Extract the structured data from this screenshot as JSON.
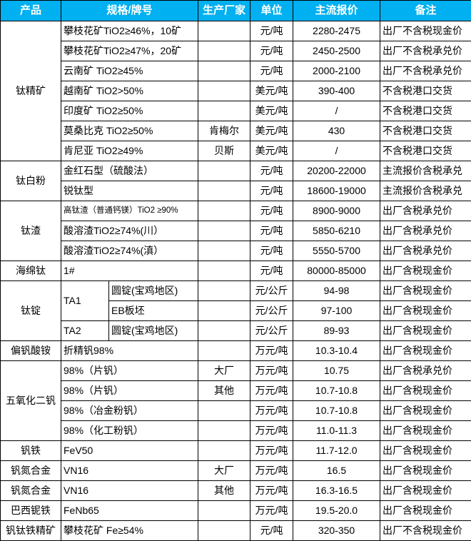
{
  "colors": {
    "header_bg": "#00b0f0",
    "header_text": "#ffffff",
    "grid_border": "#000000",
    "cell_text": "#000000"
  },
  "table": {
    "header": {
      "product": "产品",
      "spec": "规格/牌号",
      "manufacturer": "生产厂家",
      "unit": "单位",
      "price": "主流报价",
      "remark": "备注"
    },
    "rows": [
      {
        "cells": [
          {
            "t": "钛精矿",
            "rs": 7,
            "name": "product"
          },
          {
            "t": "攀枝花矿TiO2≥46%，10矿",
            "cs": 2,
            "name": "spec",
            "align": "left"
          },
          {
            "t": "",
            "name": "manufacturer"
          },
          {
            "t": "元/吨",
            "name": "unit"
          },
          {
            "t": "2280-2475",
            "name": "price"
          },
          {
            "t": "出厂不含税现金价",
            "name": "remark",
            "align": "left"
          }
        ]
      },
      {
        "cells": [
          {
            "t": "攀枝花矿TiO2≥47%，20矿",
            "cs": 2,
            "name": "spec",
            "align": "left"
          },
          {
            "t": "",
            "name": "manufacturer"
          },
          {
            "t": "元/吨",
            "name": "unit"
          },
          {
            "t": "2450-2500",
            "name": "price"
          },
          {
            "t": "出厂不含税承兑价",
            "name": "remark",
            "align": "left"
          }
        ]
      },
      {
        "cells": [
          {
            "t": "云南矿 TiO2≥45%",
            "cs": 2,
            "name": "spec",
            "align": "left"
          },
          {
            "t": "",
            "name": "manufacturer"
          },
          {
            "t": "元/吨",
            "name": "unit"
          },
          {
            "t": "2000-2100",
            "name": "price"
          },
          {
            "t": "出厂不含税承兑价",
            "name": "remark",
            "align": "left"
          }
        ]
      },
      {
        "cells": [
          {
            "t": "越南矿 TiO2>50%",
            "cs": 2,
            "name": "spec",
            "align": "left"
          },
          {
            "t": "",
            "name": "manufacturer"
          },
          {
            "t": "美元/吨",
            "name": "unit"
          },
          {
            "t": "390-400",
            "name": "price"
          },
          {
            "t": "不含税港口交货",
            "name": "remark",
            "align": "left"
          }
        ]
      },
      {
        "cells": [
          {
            "t": "印度矿 TiO2≥50%",
            "cs": 2,
            "name": "spec",
            "align": "left"
          },
          {
            "t": "",
            "name": "manufacturer"
          },
          {
            "t": "美元/吨",
            "name": "unit"
          },
          {
            "t": "/",
            "name": "price"
          },
          {
            "t": "不含税港口交货",
            "name": "remark",
            "align": "left"
          }
        ]
      },
      {
        "cells": [
          {
            "t": "莫桑比克 TiO2≥50%",
            "cs": 2,
            "name": "spec",
            "align": "left"
          },
          {
            "t": "肯梅尔",
            "name": "manufacturer"
          },
          {
            "t": "美元/吨",
            "name": "unit"
          },
          {
            "t": "430",
            "name": "price"
          },
          {
            "t": "不含税港口交货",
            "name": "remark",
            "align": "left"
          }
        ]
      },
      {
        "cells": [
          {
            "t": "肯尼亚 TiO2≥49%",
            "cs": 2,
            "name": "spec",
            "align": "left"
          },
          {
            "t": "贝斯",
            "name": "manufacturer"
          },
          {
            "t": "美元/吨",
            "name": "unit"
          },
          {
            "t": "/",
            "name": "price"
          },
          {
            "t": "不含税港口交货",
            "name": "remark",
            "align": "left"
          }
        ]
      },
      {
        "cells": [
          {
            "t": "钛白粉",
            "rs": 2,
            "name": "product"
          },
          {
            "t": "金红石型（硫酸法）",
            "cs": 2,
            "name": "spec",
            "align": "left"
          },
          {
            "t": "",
            "name": "manufacturer"
          },
          {
            "t": "元/吨",
            "name": "unit"
          },
          {
            "t": "20200-22000",
            "name": "price"
          },
          {
            "t": "主流报价含税承兑",
            "name": "remark",
            "align": "left"
          }
        ]
      },
      {
        "cells": [
          {
            "t": "锐钛型",
            "cs": 2,
            "name": "spec",
            "align": "left"
          },
          {
            "t": "",
            "name": "manufacturer"
          },
          {
            "t": "元/吨",
            "name": "unit"
          },
          {
            "t": "18600-19000",
            "name": "price"
          },
          {
            "t": "主流报价含税承兑",
            "name": "remark",
            "align": "left"
          }
        ]
      },
      {
        "cells": [
          {
            "t": "钛渣",
            "rs": 3,
            "name": "product"
          },
          {
            "t": "高钛渣（普通钙镁）TiO2 ≥90%",
            "cs": 2,
            "name": "spec",
            "align": "left",
            "small": true
          },
          {
            "t": "",
            "name": "manufacturer"
          },
          {
            "t": "元/吨",
            "name": "unit"
          },
          {
            "t": "8900-9000",
            "name": "price"
          },
          {
            "t": "出厂含税承兑价",
            "name": "remark",
            "align": "left"
          }
        ]
      },
      {
        "cells": [
          {
            "t": "酸溶渣TiO2≥74%(川）",
            "cs": 2,
            "name": "spec",
            "align": "left"
          },
          {
            "t": "",
            "name": "manufacturer"
          },
          {
            "t": "元/吨",
            "name": "unit"
          },
          {
            "t": "5850-6210",
            "name": "price"
          },
          {
            "t": "出厂含税承兑价",
            "name": "remark",
            "align": "left"
          }
        ]
      },
      {
        "cells": [
          {
            "t": "酸溶渣TiO2≥74%(滇）",
            "cs": 2,
            "name": "spec",
            "align": "left"
          },
          {
            "t": "",
            "name": "manufacturer"
          },
          {
            "t": "元/吨",
            "name": "unit"
          },
          {
            "t": "5550-5700",
            "name": "price"
          },
          {
            "t": "出厂含税承兑价",
            "name": "remark",
            "align": "left"
          }
        ]
      },
      {
        "cells": [
          {
            "t": "海绵钛",
            "name": "product"
          },
          {
            "t": "1#",
            "cs": 2,
            "name": "spec",
            "align": "left"
          },
          {
            "t": "",
            "name": "manufacturer"
          },
          {
            "t": "元/吨",
            "name": "unit"
          },
          {
            "t": "80000-85000",
            "name": "price"
          },
          {
            "t": "出厂含税现金价",
            "name": "remark",
            "align": "left"
          }
        ]
      },
      {
        "cells": [
          {
            "t": "钛锭",
            "rs": 3,
            "name": "product"
          },
          {
            "t": "TA1",
            "rs": 2,
            "name": "spec-grade",
            "align": "left"
          },
          {
            "t": "圆锭(宝鸡地区)",
            "name": "spec-form",
            "align": "left"
          },
          {
            "t": "",
            "name": "manufacturer"
          },
          {
            "t": "元/公斤",
            "name": "unit"
          },
          {
            "t": "94-98",
            "name": "price"
          },
          {
            "t": "出厂含税现金价",
            "name": "remark",
            "align": "left"
          }
        ]
      },
      {
        "cells": [
          {
            "t": "EB板坯",
            "name": "spec-form",
            "align": "left"
          },
          {
            "t": "",
            "name": "manufacturer"
          },
          {
            "t": "元/公斤",
            "name": "unit"
          },
          {
            "t": "97-100",
            "name": "price"
          },
          {
            "t": "出厂含税现金价",
            "name": "remark",
            "align": "left"
          }
        ]
      },
      {
        "cells": [
          {
            "t": "TA2",
            "name": "spec-grade",
            "align": "left"
          },
          {
            "t": "圆锭(宝鸡地区)",
            "name": "spec-form",
            "align": "left"
          },
          {
            "t": "",
            "name": "manufacturer"
          },
          {
            "t": "元/公斤",
            "name": "unit"
          },
          {
            "t": "89-93",
            "name": "price"
          },
          {
            "t": "出厂含税现金价",
            "name": "remark",
            "align": "left"
          }
        ]
      },
      {
        "cells": [
          {
            "t": "偏钒酸铵",
            "name": "product"
          },
          {
            "t": "折精钒98%",
            "cs": 2,
            "name": "spec",
            "align": "left"
          },
          {
            "t": "",
            "name": "manufacturer"
          },
          {
            "t": "万元/吨",
            "name": "unit"
          },
          {
            "t": "10.3-10.4",
            "name": "price"
          },
          {
            "t": "出厂含税现金价",
            "name": "remark",
            "align": "left"
          }
        ]
      },
      {
        "cells": [
          {
            "t": "五氧化二钒",
            "rs": 4,
            "name": "product"
          },
          {
            "t": "98%（片钒）",
            "cs": 2,
            "name": "spec",
            "align": "left"
          },
          {
            "t": "大厂",
            "name": "manufacturer"
          },
          {
            "t": "万元/吨",
            "name": "unit"
          },
          {
            "t": "10.75",
            "name": "price"
          },
          {
            "t": "出厂含税承兑价",
            "name": "remark",
            "align": "left"
          }
        ]
      },
      {
        "cells": [
          {
            "t": "98%（片钒）",
            "cs": 2,
            "name": "spec",
            "align": "left"
          },
          {
            "t": "其他",
            "name": "manufacturer"
          },
          {
            "t": "万元/吨",
            "name": "unit"
          },
          {
            "t": "10.7-10.8",
            "name": "price"
          },
          {
            "t": "出厂含税现金价",
            "name": "remark",
            "align": "left"
          }
        ]
      },
      {
        "cells": [
          {
            "t": "98%（冶金粉钒）",
            "cs": 2,
            "name": "spec",
            "align": "left"
          },
          {
            "t": "",
            "name": "manufacturer"
          },
          {
            "t": "万元/吨",
            "name": "unit"
          },
          {
            "t": "10.7-10.8",
            "name": "price"
          },
          {
            "t": "出厂含税现金价",
            "name": "remark",
            "align": "left"
          }
        ]
      },
      {
        "cells": [
          {
            "t": "98%（化工粉钒）",
            "cs": 2,
            "name": "spec",
            "align": "left"
          },
          {
            "t": "",
            "name": "manufacturer"
          },
          {
            "t": "万元/吨",
            "name": "unit"
          },
          {
            "t": "11.0-11.3",
            "name": "price"
          },
          {
            "t": "出厂含税现金价",
            "name": "remark",
            "align": "left"
          }
        ]
      },
      {
        "cells": [
          {
            "t": "钒铁",
            "name": "product"
          },
          {
            "t": "FeV50",
            "cs": 2,
            "name": "spec",
            "align": "left"
          },
          {
            "t": "",
            "name": "manufacturer"
          },
          {
            "t": "万元/吨",
            "name": "unit"
          },
          {
            "t": "11.7-12.0",
            "name": "price"
          },
          {
            "t": "出厂含税现金价",
            "name": "remark",
            "align": "left"
          }
        ]
      },
      {
        "cells": [
          {
            "t": "钒氮合金",
            "name": "product"
          },
          {
            "t": "VN16",
            "cs": 2,
            "name": "spec",
            "align": "left"
          },
          {
            "t": "大厂",
            "name": "manufacturer"
          },
          {
            "t": "万元/吨",
            "name": "unit"
          },
          {
            "t": "16.5",
            "name": "price"
          },
          {
            "t": "出厂含税现金价",
            "name": "remark",
            "align": "left"
          }
        ]
      },
      {
        "cells": [
          {
            "t": "钒氮合金",
            "name": "product"
          },
          {
            "t": "VN16",
            "cs": 2,
            "name": "spec",
            "align": "left"
          },
          {
            "t": "其他",
            "name": "manufacturer"
          },
          {
            "t": "万元/吨",
            "name": "unit"
          },
          {
            "t": "16.3-16.5",
            "name": "price"
          },
          {
            "t": "出厂含税现金价",
            "name": "remark",
            "align": "left"
          }
        ]
      },
      {
        "cells": [
          {
            "t": "巴西铌铁",
            "name": "product"
          },
          {
            "t": "FeNb65",
            "cs": 2,
            "name": "spec",
            "align": "left"
          },
          {
            "t": "",
            "name": "manufacturer"
          },
          {
            "t": "万元/吨",
            "name": "unit"
          },
          {
            "t": "19.5-20.0",
            "name": "price"
          },
          {
            "t": "出厂含税现金价",
            "name": "remark",
            "align": "left"
          }
        ]
      },
      {
        "cells": [
          {
            "t": "钒钛铁精矿",
            "name": "product"
          },
          {
            "t": "攀枝花矿 Fe≥54%",
            "cs": 2,
            "name": "spec",
            "align": "left"
          },
          {
            "t": "",
            "name": "manufacturer"
          },
          {
            "t": "元/吨",
            "name": "unit"
          },
          {
            "t": "320-350",
            "name": "price"
          },
          {
            "t": "出厂不含税现金价",
            "name": "remark",
            "align": "left"
          }
        ]
      }
    ]
  }
}
